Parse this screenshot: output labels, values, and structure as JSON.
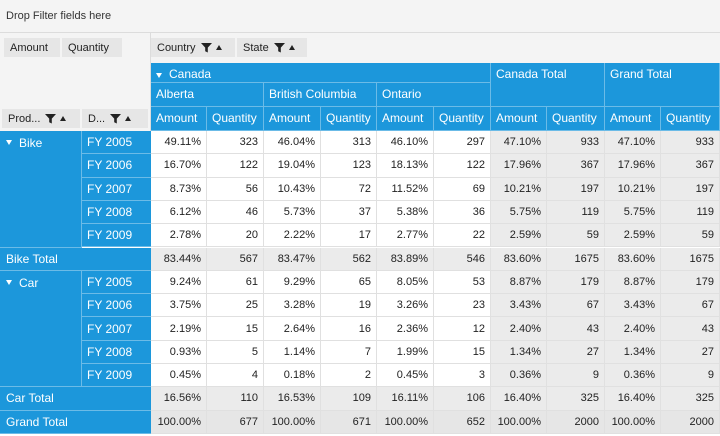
{
  "filter_area": {
    "drop_text": "Drop Filter fields here"
  },
  "value_fields": [
    "Amount",
    "Quantity"
  ],
  "column_fields": [
    "Country",
    "State"
  ],
  "row_fields": [
    "Prod...",
    "D..."
  ],
  "headers": {
    "country": "Canada",
    "states": [
      "Alberta",
      "British Columbia",
      "Ontario"
    ],
    "canada_total": "Canada Total",
    "grand_total": "Grand Total",
    "measures": [
      "Amount",
      "Quantity"
    ]
  },
  "rows": [
    {
      "group": "Bike",
      "year": "FY 2005",
      "values": [
        "49.11%",
        "323",
        "46.04%",
        "313",
        "46.10%",
        "297",
        "47.10%",
        "933",
        "47.10%",
        "933"
      ]
    },
    {
      "group": "",
      "year": "FY 2006",
      "values": [
        "16.70%",
        "122",
        "19.04%",
        "123",
        "18.13%",
        "122",
        "17.96%",
        "367",
        "17.96%",
        "367"
      ]
    },
    {
      "group": "",
      "year": "FY 2007",
      "values": [
        "8.73%",
        "56",
        "10.43%",
        "72",
        "11.52%",
        "69",
        "10.21%",
        "197",
        "10.21%",
        "197"
      ]
    },
    {
      "group": "",
      "year": "FY 2008",
      "values": [
        "6.12%",
        "46",
        "5.73%",
        "37",
        "5.38%",
        "36",
        "5.75%",
        "119",
        "5.75%",
        "119"
      ]
    },
    {
      "group": "",
      "year": "FY 2009",
      "values": [
        "2.78%",
        "20",
        "2.22%",
        "17",
        "2.77%",
        "22",
        "2.59%",
        "59",
        "2.59%",
        "59"
      ]
    },
    {
      "total": "Bike Total",
      "values": [
        "83.44%",
        "567",
        "83.47%",
        "562",
        "83.89%",
        "546",
        "83.60%",
        "1675",
        "83.60%",
        "1675"
      ]
    },
    {
      "group": "Car",
      "year": "FY 2005",
      "values": [
        "9.24%",
        "61",
        "9.29%",
        "65",
        "8.05%",
        "53",
        "8.87%",
        "179",
        "8.87%",
        "179"
      ]
    },
    {
      "group": "",
      "year": "FY 2006",
      "values": [
        "3.75%",
        "25",
        "3.28%",
        "19",
        "3.26%",
        "23",
        "3.43%",
        "67",
        "3.43%",
        "67"
      ]
    },
    {
      "group": "",
      "year": "FY 2007",
      "values": [
        "2.19%",
        "15",
        "2.64%",
        "16",
        "2.36%",
        "12",
        "2.40%",
        "43",
        "2.40%",
        "43"
      ]
    },
    {
      "group": "",
      "year": "FY 2008",
      "values": [
        "0.93%",
        "5",
        "1.14%",
        "7",
        "1.99%",
        "15",
        "1.34%",
        "27",
        "1.34%",
        "27"
      ]
    },
    {
      "group": "",
      "year": "FY 2009",
      "values": [
        "0.45%",
        "4",
        "0.18%",
        "2",
        "0.45%",
        "3",
        "0.36%",
        "9",
        "0.36%",
        "9"
      ]
    },
    {
      "total": "Car Total",
      "values": [
        "16.56%",
        "110",
        "16.53%",
        "109",
        "16.11%",
        "106",
        "16.40%",
        "325",
        "16.40%",
        "325"
      ]
    },
    {
      "total": "Grand Total",
      "grand": true,
      "values": [
        "100.00%",
        "677",
        "100.00%",
        "671",
        "100.00%",
        "652",
        "100.00%",
        "2000",
        "100.00%",
        "2000"
      ]
    }
  ],
  "colors": {
    "header_blue": "#1c97db",
    "total_gray": "#ebebeb",
    "panel_gray": "#f4f4f4"
  }
}
